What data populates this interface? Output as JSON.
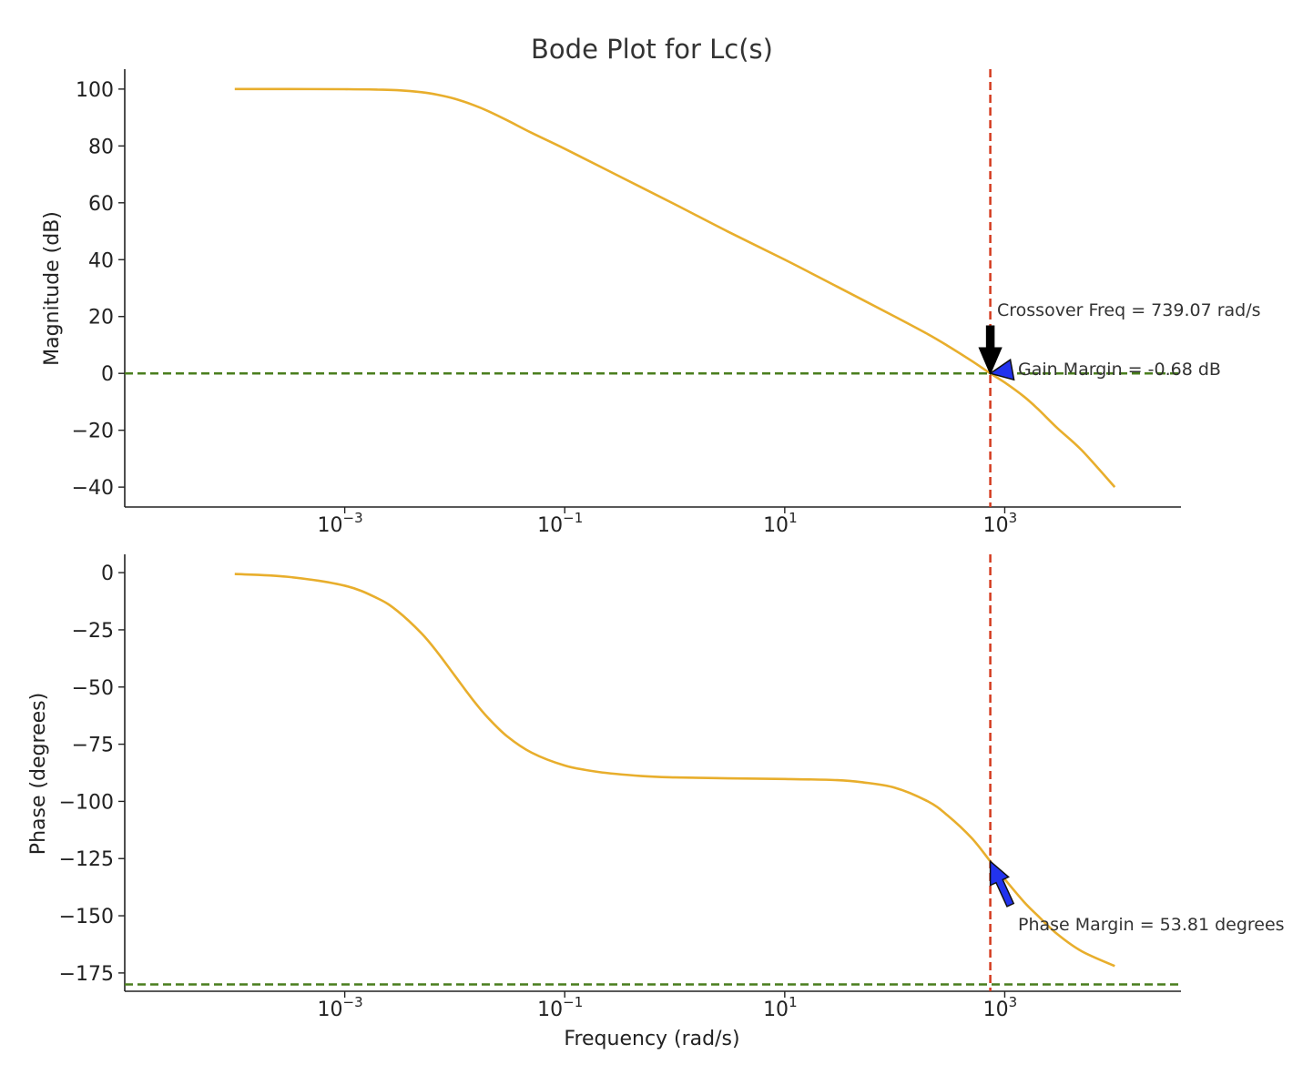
{
  "chart_data": {
    "type": "line",
    "title": "Bode Plot for Lc(s)",
    "line_color": "#E8AE2C",
    "crossover_line_color": "#D43A1E",
    "reference_line_color": "#4A7E1E",
    "x_scale": "log",
    "xlabel": "Frequency (rad/s)",
    "xlim": [
      1e-05,
      40000
    ],
    "x_ticks": [
      {
        "value": 0.001,
        "base": "10",
        "exp": "−3"
      },
      {
        "value": 0.1,
        "base": "10",
        "exp": "−1"
      },
      {
        "value": 10,
        "base": "10",
        "exp": "1"
      },
      {
        "value": 1000,
        "base": "10",
        "exp": "3"
      }
    ],
    "crossover_frequency": 739.07,
    "panels": [
      {
        "name": "magnitude",
        "ylabel": "Magnitude (dB)",
        "ylim": [
          -47,
          107
        ],
        "y_ticks": [
          {
            "value": 100,
            "label": "100"
          },
          {
            "value": 80,
            "label": "80"
          },
          {
            "value": 60,
            "label": "60"
          },
          {
            "value": 40,
            "label": "40"
          },
          {
            "value": 20,
            "label": "20"
          },
          {
            "value": 0,
            "label": "0"
          },
          {
            "value": -20,
            "label": "−20"
          },
          {
            "value": -40,
            "label": "−40"
          }
        ],
        "reference_line": 0,
        "series": {
          "x": [
            0.0001,
            0.0003,
            0.001,
            0.002,
            0.003,
            0.005,
            0.007,
            0.01,
            0.015,
            0.02,
            0.03,
            0.05,
            0.1,
            0.3,
            1,
            3,
            10,
            30,
            100,
            200,
            300,
            500,
            739.07,
            1000,
            1500,
            2000,
            3000,
            5000,
            10000
          ],
          "y": [
            100,
            100,
            99.96,
            99.8,
            99.6,
            98.9,
            98.0,
            96.6,
            94.3,
            92.3,
            89.0,
            84.6,
            79.0,
            69.7,
            59.5,
            50.0,
            40.0,
            30.5,
            20.0,
            13.8,
            9.8,
            4.4,
            0,
            -3.2,
            -8.2,
            -12.5,
            -19.2,
            -27.0,
            -40.0
          ]
        },
        "annotations": [
          {
            "text": "Crossover Freq = 739.07 rad/s",
            "x": 739.07,
            "y": 0,
            "arrow_color": "#000000"
          },
          {
            "text": "Gain Margin = -0.68 dB",
            "x": 739.07,
            "y": 0,
            "arrow_color": "#2233EE"
          }
        ]
      },
      {
        "name": "phase",
        "ylabel": "Phase (degrees)",
        "xlabel": "Frequency (rad/s)",
        "ylim": [
          -183,
          8
        ],
        "y_ticks": [
          {
            "value": 0,
            "label": "0"
          },
          {
            "value": -25,
            "label": "−25"
          },
          {
            "value": -50,
            "label": "−50"
          },
          {
            "value": -75,
            "label": "−75"
          },
          {
            "value": -100,
            "label": "−100"
          },
          {
            "value": -125,
            "label": "−125"
          },
          {
            "value": -150,
            "label": "−150"
          },
          {
            "value": -175,
            "label": "−175"
          }
        ],
        "reference_line": -180,
        "series": {
          "x": [
            0.0001,
            0.0003,
            0.001,
            0.002,
            0.003,
            0.005,
            0.007,
            0.01,
            0.015,
            0.02,
            0.03,
            0.05,
            0.1,
            0.2,
            0.5,
            1,
            3,
            10,
            30,
            50,
            100,
            200,
            300,
            500,
            739.07,
            1000,
            1500,
            2000,
            3000,
            5000,
            10000
          ],
          "y": [
            -0.6,
            -1.8,
            -5.7,
            -11.3,
            -16.7,
            -26.6,
            -35.0,
            -45.0,
            -56.3,
            -63.4,
            -71.6,
            -78.7,
            -84.3,
            -87.1,
            -88.9,
            -89.5,
            -89.9,
            -90.2,
            -90.7,
            -91.6,
            -94.0,
            -100.0,
            -106.0,
            -116.0,
            -126.2,
            -134.0,
            -144.0,
            -150.0,
            -158.0,
            -165.5,
            -172.0
          ]
        },
        "annotations": [
          {
            "text": "Phase Margin = 53.81 degrees",
            "x": 739.07,
            "y": -126.19,
            "arrow_color": "#2233EE"
          }
        ]
      }
    ]
  }
}
